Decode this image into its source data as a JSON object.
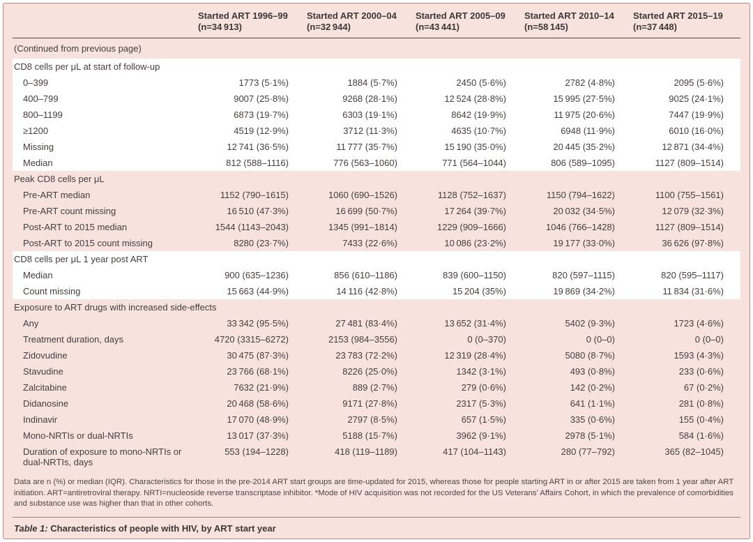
{
  "colors": {
    "sheet_pink": "#f7e2dd",
    "band_white": "#ffffff",
    "outer_border": "#c8837b",
    "header_rule": "#4a4541",
    "text": "#433e3c"
  },
  "table": {
    "columns": [
      {
        "title": "Started ART 1996–99",
        "n": "(n=34 913)"
      },
      {
        "title": "Started ART 2000–04",
        "n": "(n=32 944)"
      },
      {
        "title": "Started ART 2005–09",
        "n": "(n=43 441)"
      },
      {
        "title": "Started ART 2010–14",
        "n": "(n=58 145)"
      },
      {
        "title": "Started ART 2015–19",
        "n": "(n=37 448)"
      }
    ],
    "continued_note": "(Continued from previous page)",
    "sections": [
      {
        "header": "CD8 cells per μL at start of follow-up",
        "band": "white",
        "rows": [
          {
            "label": "0–399",
            "values": [
              "1773 (5·1%)",
              "1884 (5·7%)",
              "2450 (5·6%)",
              "2782 (4·8%)",
              "2095 (5·6%)"
            ]
          },
          {
            "label": "400–799",
            "values": [
              "9007 (25·8%)",
              "9268 (28·1%)",
              "12 524 (28·8%)",
              "15 995 (27·5%)",
              "9025 (24·1%)"
            ]
          },
          {
            "label": "800–1199",
            "values": [
              "6873 (19·7%)",
              "6303 (19·1%)",
              "8642 (19·9%)",
              "11 975 (20·6%)",
              "7447 (19·9%)"
            ]
          },
          {
            "label": "≥1200",
            "values": [
              "4519 (12·9%)",
              "3712 (11·3%)",
              "4635 (10·7%)",
              "6948 (11·9%)",
              "6010 (16·0%)"
            ]
          },
          {
            "label": "Missing",
            "values": [
              "12 741 (36·5%)",
              "11 777 (35·7%)",
              "15 190 (35·0%)",
              "20 445 (35·2%)",
              "12 871 (34·4%)"
            ]
          },
          {
            "label": "Median",
            "values": [
              "812 (588–1116)",
              "776 (563–1060)",
              "771 (564–1044)",
              "806 (589–1095)",
              "1127 (809–1514)"
            ]
          }
        ]
      },
      {
        "header": "Peak CD8 cells per μL",
        "band": "pink",
        "rows": [
          {
            "label": "Pre-ART median",
            "values": [
              "1152 (790–1615)",
              "1060 (690–1526)",
              "1128 (752–1637)",
              "1150 (794–1622)",
              "1100 (755–1561)"
            ]
          },
          {
            "label": "Pre-ART count missing",
            "values": [
              "16 510 (47·3%)",
              "16 699 (50·7%)",
              "17 264 (39·7%)",
              "20 032 (34·5%)",
              "12 079 (32·3%)"
            ]
          },
          {
            "label": "Post-ART to 2015 median",
            "values": [
              "1544 (1143–2043)",
              "1345 (991–1814)",
              "1229 (909–1666)",
              "1046 (766–1428)",
              "1127 (809–1514)"
            ]
          },
          {
            "label": "Post-ART to 2015 count missing",
            "values": [
              "8280 (23·7%)",
              "7433 (22·6%)",
              "10 086 (23·2%)",
              "19 177 (33·0%)",
              "36 626 (97·8%)"
            ]
          }
        ]
      },
      {
        "header": "CD8 cells per μL 1 year post ART",
        "band": "white",
        "rows": [
          {
            "label": "Median",
            "values": [
              "900 (635–1236)",
              "856 (610–1186)",
              "839 (600–1150)",
              "820 (597–1115)",
              "820 (595–1117)"
            ]
          },
          {
            "label": "Count missing",
            "values": [
              "15 663 (44·9%)",
              "14 116 (42·8%)",
              "15 204 (35%)",
              "19 869 (34·2%)",
              "11 834 (31·6%)"
            ]
          }
        ]
      },
      {
        "header": "Exposure to ART drugs with increased side-effects",
        "band": "pink",
        "rows": [
          {
            "label": "Any",
            "values": [
              "33 342 (95·5%)",
              "27 481 (83·4%)",
              "13 652 (31·4%)",
              "5402 (9·3%)",
              "1723 (4·6%)"
            ]
          },
          {
            "label": "Treatment duration, days",
            "values": [
              "4720 (3315–6272)",
              "2153 (984–3556)",
              "0 (0–370)",
              "0 (0–0)",
              "0 (0–0)"
            ]
          },
          {
            "label": "Zidovudine",
            "values": [
              "30 475 (87·3%)",
              "23 783 (72·2%)",
              "12 319 (28·4%)",
              "5080 (8·7%)",
              "1593 (4·3%)"
            ]
          },
          {
            "label": "Stavudine",
            "values": [
              "23 766 (68·1%)",
              "8226 (25·0%)",
              "1342 (3·1%)",
              "493 (0·8%)",
              "233 (0·6%)"
            ]
          },
          {
            "label": "Zalcitabine",
            "values": [
              "7632 (21·9%)",
              "889 (2·7%)",
              "279 (0·6%)",
              "142 (0·2%)",
              "67 (0·2%)"
            ]
          },
          {
            "label": "Didanosine",
            "values": [
              "20 468 (58·6%)",
              "9171 (27·8%)",
              "2317 (5·3%)",
              "641 (1·1%)",
              "281 (0·8%)"
            ]
          },
          {
            "label": "Indinavir",
            "values": [
              "17 070 (48·9%)",
              "2797 (8·5%)",
              "657 (1·5%)",
              "335 (0·6%)",
              "155 (0·4%)"
            ]
          },
          {
            "label": "Mono-NRTIs or dual-NRTIs",
            "values": [
              "13 017 (37·3%)",
              "5188 (15·7%)",
              "3962 (9·1%)",
              "2978 (5·1%)",
              "584 (1·6%)"
            ]
          },
          {
            "label": "Duration of exposure to mono-NRTIs or dual-NRTIs, days",
            "values": [
              "553 (194–1228)",
              "418 (119–1189)",
              "417 (104–1143)",
              "280 (77–792)",
              "365 (82–1045)"
            ]
          }
        ]
      }
    ],
    "footnote": "Data are n (%) or median (IQR). Characteristics for those in the pre-2014 ART start groups are time-updated for 2015, whereas those for people starting ART in or after 2015 are taken from 1 year after ART initiation. ART=antiretroviral therapy. NRTI=nucleoside reverse transcriptase inhibitor. *Mode of HIV acquisition was not recorded for the US Veterans’ Affairs Cohort, in which the prevalence of comorbidities and substance use was higher than that in other cohorts.",
    "caption": {
      "label": "Table 1:",
      "text": " Characteristics of people with HIV, by ART start year"
    }
  }
}
